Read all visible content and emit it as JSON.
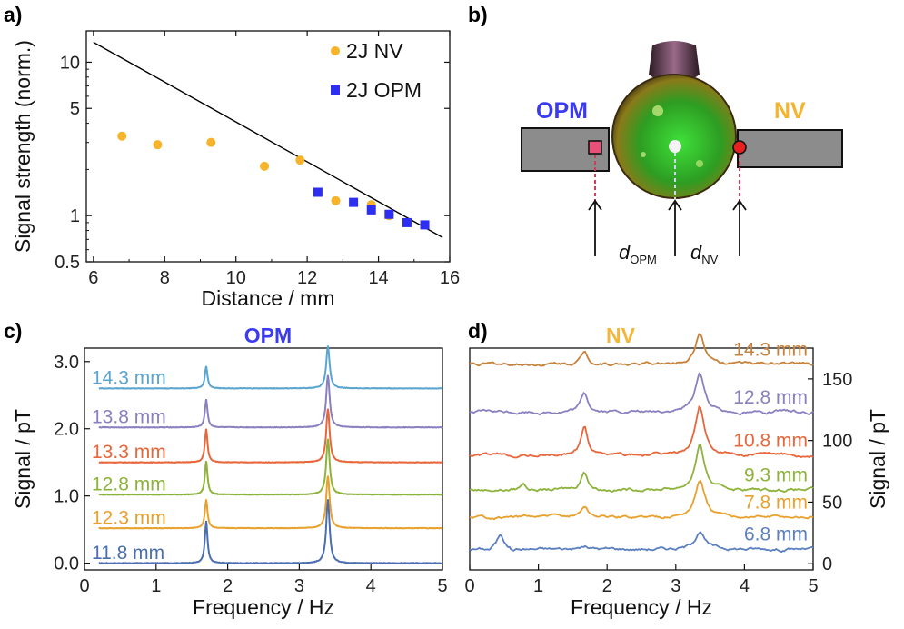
{
  "panels": {
    "a": "a)",
    "b": "b)",
    "c": "c)",
    "d": "d)"
  },
  "chart_data": [
    {
      "panel": "a",
      "type": "scatter",
      "xlabel": "Distance / mm",
      "ylabel": "Signal strength (norm.)",
      "xlim": [
        5.8,
        16
      ],
      "ylim": [
        0.5,
        16
      ],
      "yscale": "log",
      "xticks": [
        "6",
        "8",
        "10",
        "12",
        "14",
        "16"
      ],
      "yticks": [
        "0.5",
        "1",
        "5",
        "10"
      ],
      "legend_position": "top-right",
      "series": [
        {
          "name": "2J NV",
          "color": "#f6b32b",
          "marker": "circle",
          "x": [
            6.8,
            7.8,
            9.3,
            10.8,
            11.8,
            12.8,
            13.8,
            14.3
          ],
          "y": [
            3.3,
            2.9,
            3.0,
            2.1,
            2.3,
            1.25,
            1.18,
            1.0
          ]
        },
        {
          "name": "2J OPM",
          "color": "#2e2ef0",
          "marker": "square",
          "x": [
            12.3,
            13.3,
            13.8,
            14.3,
            14.8,
            15.3
          ],
          "y": [
            1.42,
            1.22,
            1.09,
            1.02,
            0.9,
            0.87
          ]
        },
        {
          "name": "",
          "color": "#000000",
          "marker": "none",
          "x": [
            6.0,
            15.8
          ],
          "y": [
            13.5,
            0.72
          ]
        }
      ]
    },
    {
      "panel": "c",
      "type": "line",
      "title": "OPM",
      "title_color": "#3a3af0",
      "xlabel": "Frequency / Hz",
      "ylabel": "Signal / pT",
      "xlim": [
        0,
        5
      ],
      "ylim": [
        -0.1,
        3.2
      ],
      "xticks": [
        "0",
        "1",
        "2",
        "3",
        "4",
        "5"
      ],
      "yticks": [
        "0.0",
        "1.0",
        "2.0",
        "3.0"
      ],
      "peaks": [
        {
          "freq": 1.7,
          "width": 0.022
        },
        {
          "freq": 3.4,
          "width": 0.028
        }
      ],
      "series": [
        {
          "name": "11.8 mm",
          "color": "#4b6eb0",
          "offset": 0.0,
          "peak1": 0.63,
          "peak2": 0.95
        },
        {
          "name": "12.3 mm",
          "color": "#e9a12d",
          "offset": 0.52,
          "peak1": 0.43,
          "peak2": 0.78
        },
        {
          "name": "12.8 mm",
          "color": "#8db33b",
          "offset": 1.02,
          "peak1": 0.5,
          "peak2": 0.83
        },
        {
          "name": "13.3 mm",
          "color": "#e8663a",
          "offset": 1.5,
          "peak1": 0.5,
          "peak2": 0.8
        },
        {
          "name": "13.8 mm",
          "color": "#8a80bf",
          "offset": 2.02,
          "peak1": 0.42,
          "peak2": 0.78
        },
        {
          "name": "14.3 mm",
          "color": "#5aa5cf",
          "offset": 2.6,
          "peak1": 0.33,
          "peak2": 0.63
        }
      ]
    },
    {
      "panel": "d",
      "type": "line",
      "title": "NV",
      "title_color": "#f4b73a",
      "xlabel": "Frequency / Hz",
      "ylabel": "Signal / pT",
      "xlim": [
        0,
        5
      ],
      "ylim": [
        -5,
        175
      ],
      "xticks": [
        "0",
        "1",
        "2",
        "3",
        "4",
        "5"
      ],
      "yticks": [
        "0",
        "50",
        "100",
        "150"
      ],
      "peaks": [
        {
          "freq": 1.67,
          "width": 0.06
        },
        {
          "freq": 3.35,
          "width": 0.08
        }
      ],
      "series": [
        {
          "name": "6.8 mm",
          "color": "#5b7fc0",
          "offset": 12,
          "peak1": 2,
          "peak2": 15
        },
        {
          "name": "7.8 mm",
          "color": "#e9a12d",
          "offset": 38,
          "peak1": 9,
          "peak2": 30
        },
        {
          "name": "9.3 mm",
          "color": "#8db33b",
          "offset": 60,
          "peak1": 15,
          "peak2": 36
        },
        {
          "name": "10.8 mm",
          "color": "#e8663a",
          "offset": 88,
          "peak1": 24,
          "peak2": 40
        },
        {
          "name": "12.8 mm",
          "color": "#8a80bf",
          "offset": 123,
          "peak1": 15,
          "peak2": 32
        },
        {
          "name": "14.3 mm",
          "color": "#c7823a",
          "offset": 162,
          "peak1": 10,
          "peak2": 25
        }
      ]
    }
  ],
  "diagram": {
    "opm_label": "OPM",
    "nv_label": "NV",
    "opm_color": "#3a3af0",
    "nv_color": "#f6b32b",
    "d_opm": "d",
    "d_opm_sub": "OPM",
    "d_nv": "d",
    "d_nv_sub": "NV"
  }
}
